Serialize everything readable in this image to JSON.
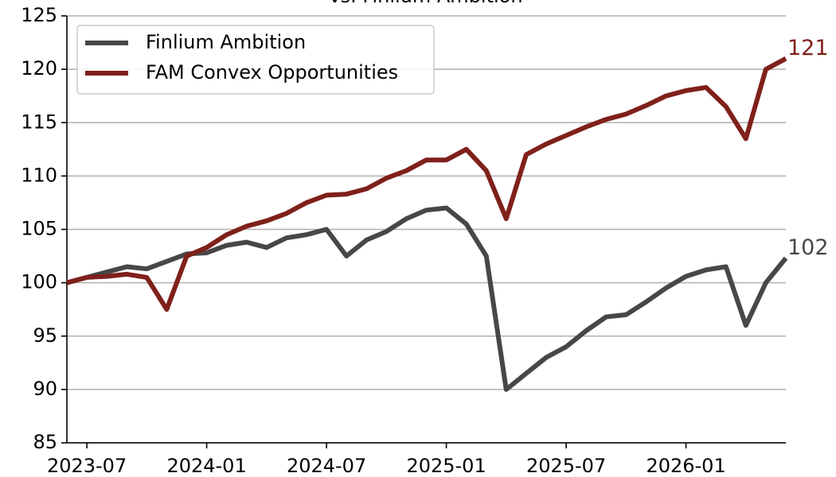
{
  "chart_data": {
    "type": "line",
    "title": "vs. Finlium Ambition",
    "x": [
      "2023-06",
      "2023-07",
      "2023-08",
      "2023-09",
      "2023-10",
      "2023-11",
      "2023-12",
      "2024-01",
      "2024-02",
      "2024-03",
      "2024-04",
      "2024-05",
      "2024-06",
      "2024-07",
      "2024-08",
      "2024-09",
      "2024-10",
      "2024-11",
      "2024-12",
      "2025-01",
      "2025-02",
      "2025-03",
      "2025-04",
      "2025-05",
      "2025-06",
      "2025-07",
      "2025-08",
      "2025-09",
      "2025-10",
      "2025-11",
      "2025-12",
      "2026-01",
      "2026-02",
      "2026-03",
      "2026-04",
      "2026-05",
      "2026-06"
    ],
    "series": [
      {
        "name": "Finlium Ambition",
        "color": "#474747",
        "end_label": "102",
        "values": [
          100,
          100.5,
          101,
          101.5,
          101.3,
          102,
          102.7,
          102.8,
          103.5,
          103.8,
          103.3,
          104.2,
          104.5,
          105,
          102.5,
          104,
          104.8,
          106,
          106.8,
          107,
          105.5,
          102.5,
          90,
          91.5,
          93,
          94,
          95.5,
          96.8,
          97,
          98.2,
          99.5,
          100.6,
          101.2,
          101.5,
          96,
          100,
          102.3
        ]
      },
      {
        "name": "FAM Convex Opportunities",
        "color": "#7f201b",
        "end_label": "121",
        "values": [
          100,
          100.5,
          100.6,
          100.8,
          100.5,
          97.5,
          102.5,
          103.3,
          104.5,
          105.3,
          105.8,
          106.5,
          107.5,
          108.2,
          108.3,
          108.8,
          109.8,
          110.5,
          111.5,
          111.5,
          112.5,
          110.5,
          106,
          112,
          113,
          113.8,
          114.6,
          115.3,
          115.8,
          116.6,
          117.5,
          118,
          118.3,
          116.5,
          113.5,
          120,
          121
        ]
      }
    ],
    "xlim": [
      "2023-06",
      "2026-06"
    ],
    "xticks": [
      {
        "value": "2023-07",
        "label": "2023-07"
      },
      {
        "value": "2024-01",
        "label": "2024-01"
      },
      {
        "value": "2024-07",
        "label": "2024-07"
      },
      {
        "value": "2025-01",
        "label": "2025-01"
      },
      {
        "value": "2025-07",
        "label": "2025-07"
      },
      {
        "value": "2026-01",
        "label": "2026-01"
      }
    ],
    "ylim": [
      85,
      125
    ],
    "yticks": [
      85,
      90,
      95,
      100,
      105,
      110,
      115,
      120,
      125
    ],
    "grid": true,
    "legend": "upper left"
  }
}
